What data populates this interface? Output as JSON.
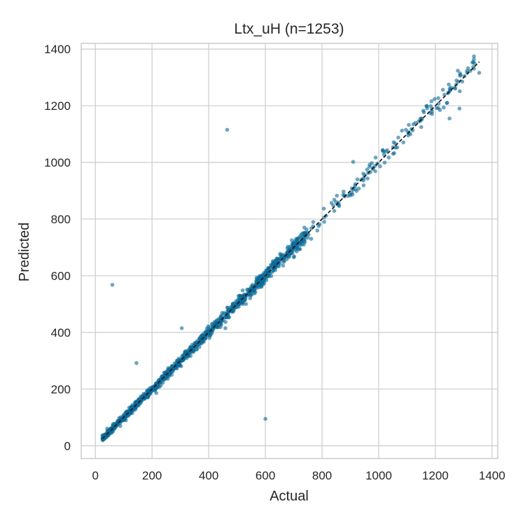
{
  "chart_data": {
    "type": "scatter",
    "title": "Ltx_uH  (n=1253)",
    "xlabel": "Actual",
    "ylabel": "Predicted",
    "xlim": [
      -50,
      1420
    ],
    "ylim": [
      -45,
      1420
    ],
    "xticks": [
      0,
      200,
      400,
      600,
      800,
      1000,
      1200,
      1400
    ],
    "yticks": [
      0,
      200,
      400,
      600,
      800,
      1000,
      1200,
      1400
    ],
    "grid": true,
    "n": 1253,
    "colors": {
      "points": "#0a6b99",
      "reference_line": "#111111",
      "grid": "#cccccc",
      "frame": "#cccccc"
    },
    "reference_line": {
      "style": "dashed",
      "x": [
        25,
        1355
      ],
      "y": [
        25,
        1355
      ]
    },
    "outliers": [
      {
        "x": 465,
        "y": 1115
      },
      {
        "x": 60,
        "y": 568
      },
      {
        "x": 600,
        "y": 95
      },
      {
        "x": 145,
        "y": 292
      },
      {
        "x": 305,
        "y": 415
      },
      {
        "x": 910,
        "y": 1002
      },
      {
        "x": 1250,
        "y": 1155
      },
      {
        "x": 1285,
        "y": 1190
      }
    ],
    "series": [
      {
        "points": []
      }
    ]
  }
}
